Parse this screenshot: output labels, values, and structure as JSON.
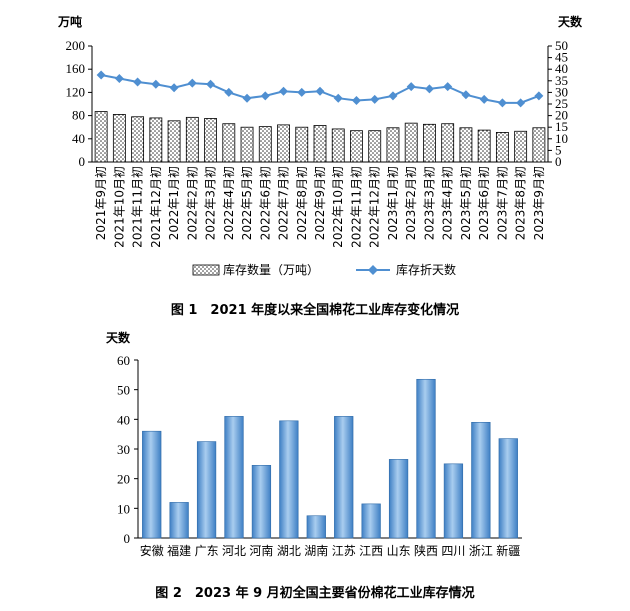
{
  "chart_data": [
    {
      "type": "bar",
      "caption": "图 1　2021 年度以来全国棉花工业库存变化情况",
      "left_unit": "万吨",
      "right_unit": "天数",
      "ylim": [
        0,
        200
      ],
      "yticks": [
        0,
        40,
        80,
        120,
        160,
        200
      ],
      "y2lim": [
        0,
        50
      ],
      "y2ticks": [
        0,
        5,
        10,
        15,
        20,
        25,
        30,
        35,
        40,
        45,
        50
      ],
      "legend_position": "bottom",
      "categories": [
        "2021年9月初",
        "2021年10月初",
        "2021年11月初",
        "2021年12月初",
        "2022年1月初",
        "2022年2月初",
        "2022年3月初",
        "2022年4月初",
        "2022年5月初",
        "2022年6月初",
        "2022年7月初",
        "2022年8月初",
        "2022年9月初",
        "2022年10月初",
        "2022年11月初",
        "2022年12月初",
        "2023年1月初",
        "2023年2月初",
        "2023年3月初",
        "2023年4月初",
        "2023年5月初",
        "2023年6月初",
        "2023年7月初",
        "2023年8月初",
        "2023年9月初"
      ],
      "series": [
        {
          "name": "库存数量（万吨）",
          "kind": "bar",
          "axis": "left",
          "values": [
            87,
            82,
            78,
            76,
            71,
            77,
            75,
            66,
            60,
            61,
            64,
            60,
            63,
            57,
            54,
            54,
            59,
            67,
            65,
            66,
            59,
            55,
            51,
            53,
            59
          ]
        },
        {
          "name": "库存折天数",
          "kind": "line",
          "axis": "right",
          "values": [
            37.5,
            36,
            34.5,
            33.5,
            32,
            34,
            33.5,
            30,
            27.5,
            28.5,
            30.5,
            30,
            30.5,
            27.5,
            26.5,
            27,
            28.5,
            32.5,
            31.5,
            32.5,
            29,
            27,
            25.5,
            25.5,
            28.5
          ]
        }
      ]
    },
    {
      "type": "bar",
      "caption": "图 2　2023 年 9 月初全国主要省份棉花工业库存情况",
      "left_unit": "天数",
      "ylim": [
        0,
        60
      ],
      "yticks": [
        0,
        10,
        20,
        30,
        40,
        50,
        60
      ],
      "categories": [
        "安徽",
        "福建",
        "广东",
        "河北",
        "河南",
        "湖北",
        "湖南",
        "江苏",
        "江西",
        "山东",
        "陕西",
        "四川",
        "浙江",
        "新疆"
      ],
      "values": [
        36,
        12,
        32.5,
        41,
        24.5,
        39.5,
        7.5,
        41,
        11.5,
        26.5,
        53.5,
        25,
        39,
        33.5
      ]
    }
  ],
  "colors": {
    "line": "#4f8fd1",
    "bar_fill": "#d8d8d8",
    "bar2_light": "#a9cdef",
    "bar2_dark": "#3e7fc4"
  }
}
